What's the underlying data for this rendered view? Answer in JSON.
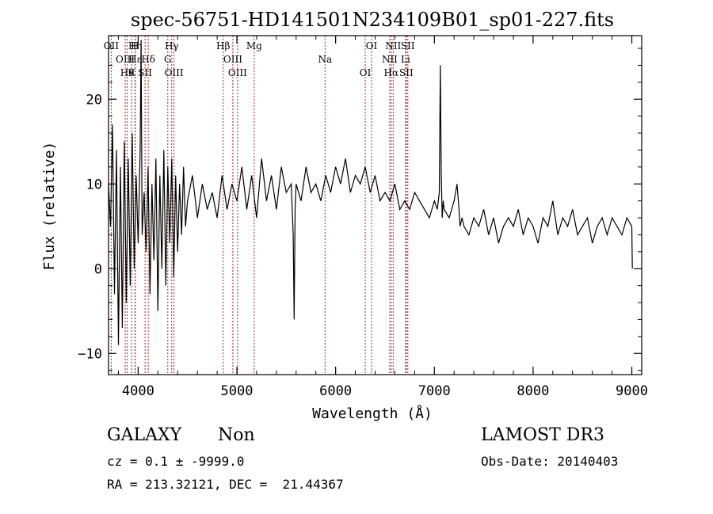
{
  "chart_data": {
    "type": "line",
    "title": "spec-56751-HD141501N234109B01_sp01-227.fits",
    "xlabel": "Wavelength (Å)",
    "ylabel": "Flux (relative)",
    "xlim": [
      3700,
      9100
    ],
    "ylim": [
      -12.5,
      27.5
    ],
    "xticks": [
      4000,
      5000,
      6000,
      7000,
      8000,
      9000
    ],
    "yticks": [
      -10,
      0,
      10,
      20
    ],
    "grid": false,
    "series": [
      {
        "name": "flux",
        "x": [
          3700,
          3720,
          3740,
          3760,
          3780,
          3800,
          3820,
          3840,
          3860,
          3880,
          3900,
          3920,
          3940,
          3960,
          3980,
          4000,
          4020,
          4030,
          4040,
          4060,
          4080,
          4100,
          4120,
          4140,
          4160,
          4180,
          4200,
          4220,
          4240,
          4260,
          4280,
          4300,
          4320,
          4340,
          4360,
          4380,
          4400,
          4420,
          4440,
          4460,
          4480,
          4500,
          4550,
          4600,
          4650,
          4700,
          4750,
          4800,
          4850,
          4900,
          4950,
          5000,
          5050,
          5100,
          5150,
          5200,
          5250,
          5300,
          5350,
          5400,
          5450,
          5500,
          5550,
          5570,
          5580,
          5590,
          5600,
          5650,
          5700,
          5750,
          5800,
          5850,
          5900,
          5950,
          6000,
          6050,
          6100,
          6150,
          6200,
          6250,
          6300,
          6350,
          6400,
          6450,
          6500,
          6550,
          6600,
          6650,
          6700,
          6750,
          6800,
          6850,
          6900,
          6950,
          7000,
          7030,
          7050,
          7060,
          7070,
          7080,
          7090,
          7100,
          7150,
          7200,
          7230,
          7250,
          7260,
          7280,
          7300,
          7350,
          7400,
          7450,
          7500,
          7550,
          7600,
          7650,
          7700,
          7750,
          7800,
          7850,
          7900,
          7950,
          8000,
          8050,
          8100,
          8150,
          8200,
          8250,
          8300,
          8350,
          8400,
          8450,
          8500,
          8550,
          8600,
          8650,
          8700,
          8750,
          8800,
          8850,
          8900,
          8950,
          9000,
          9005
        ],
        "values": [
          10,
          5,
          17,
          -3,
          14,
          -9,
          12,
          -7,
          15,
          -4,
          13,
          -2,
          16,
          0,
          11,
          3,
          14,
          27,
          4,
          9,
          2,
          12,
          -3,
          10,
          1,
          13,
          -5,
          11,
          0,
          14,
          -2,
          12,
          3,
          13,
          -1,
          11,
          2,
          10,
          4,
          12,
          5,
          8,
          11,
          6,
          10,
          7,
          9,
          6,
          11,
          7,
          10,
          8,
          12,
          7,
          11,
          6,
          13,
          8,
          11,
          7,
          12,
          9,
          10,
          4,
          -6,
          7,
          10,
          8,
          12,
          9,
          10,
          8,
          11,
          9,
          12,
          10,
          13,
          9,
          11,
          10,
          12,
          9,
          11,
          8,
          9,
          8,
          10,
          7,
          8,
          7,
          9,
          8,
          7,
          6,
          8,
          7,
          9,
          24,
          11,
          6,
          8,
          7,
          6,
          8,
          10,
          7,
          5,
          6,
          5,
          4,
          6,
          5,
          7,
          4,
          6,
          3,
          5,
          6,
          5,
          7,
          4,
          6,
          5,
          3,
          6,
          5,
          8,
          4,
          6,
          5,
          7,
          4,
          5,
          6,
          3,
          5,
          6,
          4,
          6,
          5,
          4,
          6,
          5,
          0
        ]
      }
    ],
    "lines": [
      {
        "label": "OII",
        "x": 3727
      },
      {
        "label": "OIII",
        "x": 3869
      },
      {
        "label": "Hθ",
        "x": 3889
      },
      {
        "label": "Hη",
        "x": 3970
      },
      {
        "label": "Hε",
        "x": 3970
      },
      {
        "label": "K",
        "x": 3934
      },
      {
        "label": "H",
        "x": 3968
      },
      {
        "label": "Hδ",
        "x": 4102
      },
      {
        "label": "SII",
        "x": 4070
      },
      {
        "label": "Hγ",
        "x": 4340
      },
      {
        "label": "G",
        "x": 4300
      },
      {
        "label": "OIII",
        "x": 4363
      },
      {
        "label": "Hβ",
        "x": 4861
      },
      {
        "label": "OIII",
        "x": 4959
      },
      {
        "label": "OIII",
        "x": 5007
      },
      {
        "label": "Mg",
        "x": 5175
      },
      {
        "label": "Na",
        "x": 5893
      },
      {
        "label": "OI",
        "x": 6300
      },
      {
        "label": "OI",
        "x": 6364
      },
      {
        "label": "NII",
        "x": 6548
      },
      {
        "label": "Hα",
        "x": 6563
      },
      {
        "label": "NII",
        "x": 6583
      },
      {
        "label": "Li",
        "x": 6708
      },
      {
        "label": "SII",
        "x": 6716
      },
      {
        "label": "SII",
        "x": 6731
      }
    ],
    "annotations": [
      {
        "text": "OI",
        "row": 0,
        "x": 6300
      },
      {
        "text": "Hα",
        "row": 0,
        "x": 6563
      },
      {
        "text": "SII",
        "row": 0,
        "x": 6716
      },
      {
        "text": "OII",
        "row": 1,
        "x": 3727
      },
      {
        "text": "Hθ",
        "row": 0,
        "x": 3889
      },
      {
        "text": "K",
        "row": 0,
        "x": 3934
      },
      {
        "text": "Hδ",
        "row": 0,
        "x": 4102
      },
      {
        "text": "OIII",
        "row": 0,
        "x": 4363
      },
      {
        "text": "OIII",
        "row": 0,
        "x": 4959
      },
      {
        "text": "Na",
        "row": 1,
        "x": 5893
      }
    ]
  },
  "info": {
    "class": "GALAXY",
    "subclass": "Non",
    "cz": "cz = 0.1 ± -9999.0",
    "radec": "RA = 213.32121, DEC =  21.44367",
    "survey": "LAMOST DR3",
    "obsdate": "Obs-Date: 20140403"
  }
}
